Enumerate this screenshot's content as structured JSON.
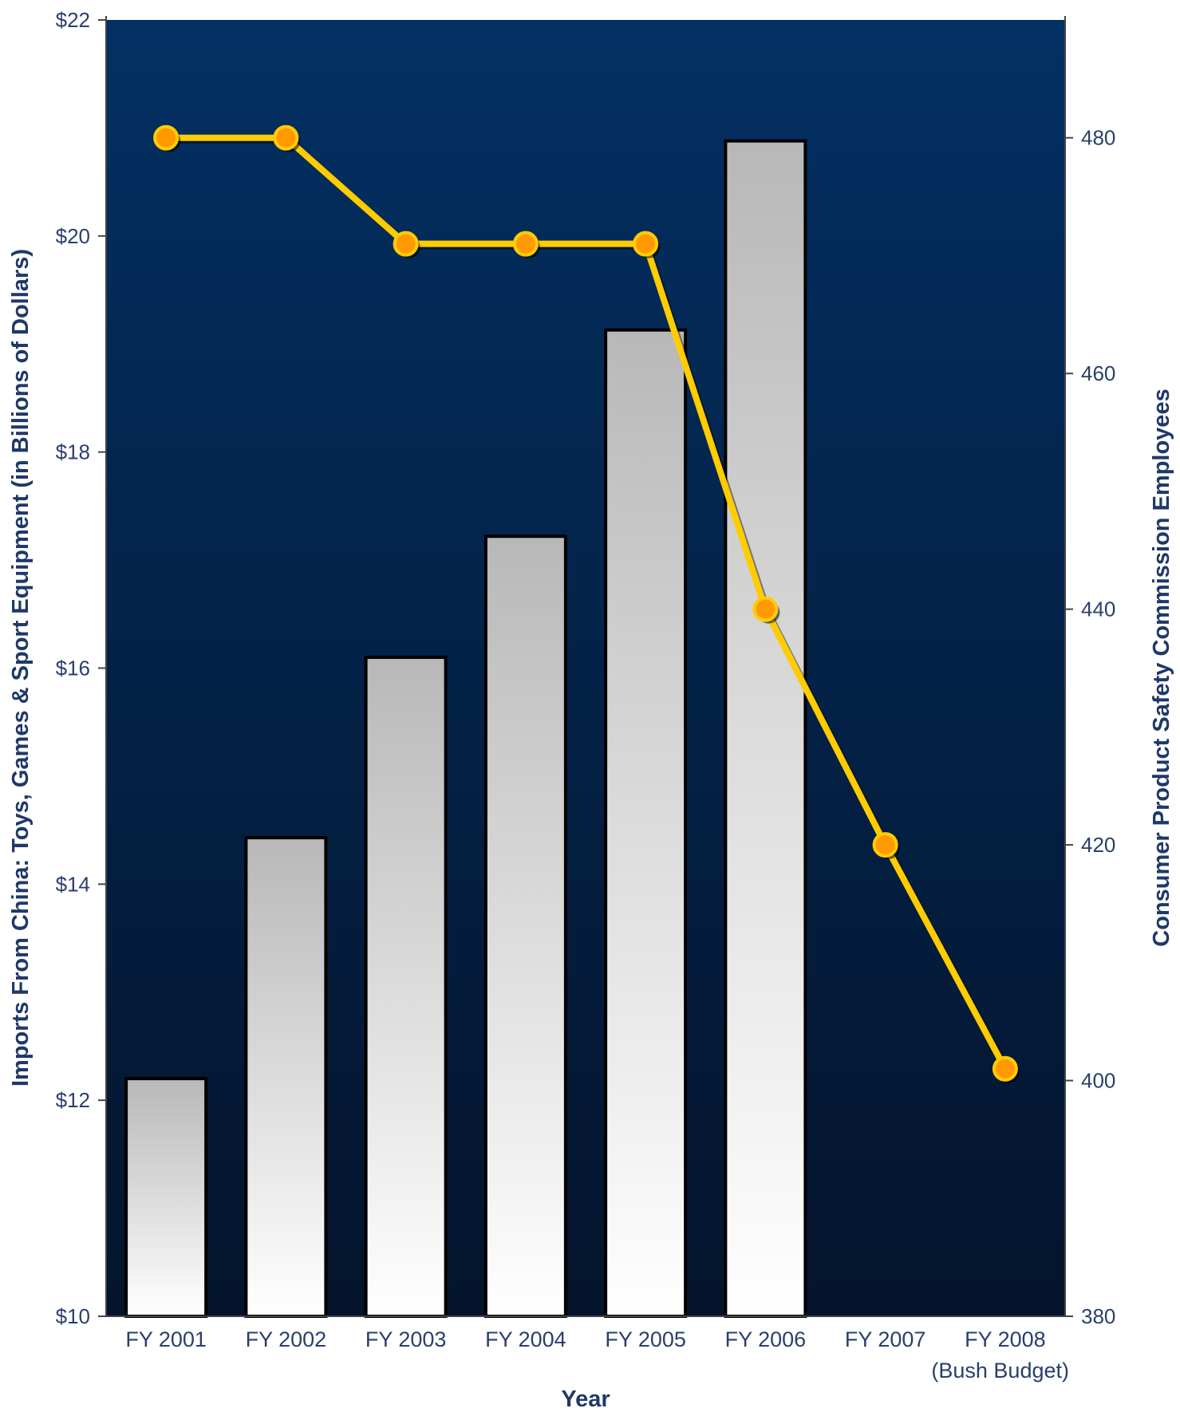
{
  "chart_data": {
    "type": "bar",
    "categories": [
      "FY 2001",
      "FY 2002",
      "FY 2003",
      "FY 2004",
      "FY 2005",
      "FY 2006",
      "FY 2007",
      "FY 2008"
    ],
    "category_sublabels": [
      "",
      "",
      "",
      "",
      "",
      "",
      "",
      "(Bush Budget)"
    ],
    "series": [
      {
        "type": "bar",
        "axis": "left",
        "values": [
          12.2,
          14.43,
          16.1,
          17.22,
          19.13,
          20.88,
          null,
          null
        ]
      },
      {
        "type": "line",
        "axis": "right",
        "values": [
          480,
          480,
          471,
          471,
          471,
          440,
          420,
          401
        ]
      }
    ],
    "xlabel": "Year",
    "ylabel": "Imports From China: Toys, Games & Sport Equipment (in Billions of Dollars)",
    "y2label": "Consumer Product Safety Commission Employees",
    "ylim": [
      10,
      22
    ],
    "y2lim": [
      380,
      490
    ],
    "yticks": [
      "$10",
      "$12",
      "$14",
      "$16",
      "$18",
      "$20",
      "$22"
    ],
    "y2ticks": [
      "380",
      "400",
      "420",
      "440",
      "460",
      "480"
    ],
    "colors": {
      "plot_bg_top": "#033063",
      "plot_bg_bottom": "#04142c",
      "bar_top": "#b8b8b8",
      "bar_bottom": "#ffffff",
      "line": "#ffcc00",
      "marker": "#ff9900",
      "text": "#1f3868"
    },
    "grid": false,
    "legend": "none"
  }
}
